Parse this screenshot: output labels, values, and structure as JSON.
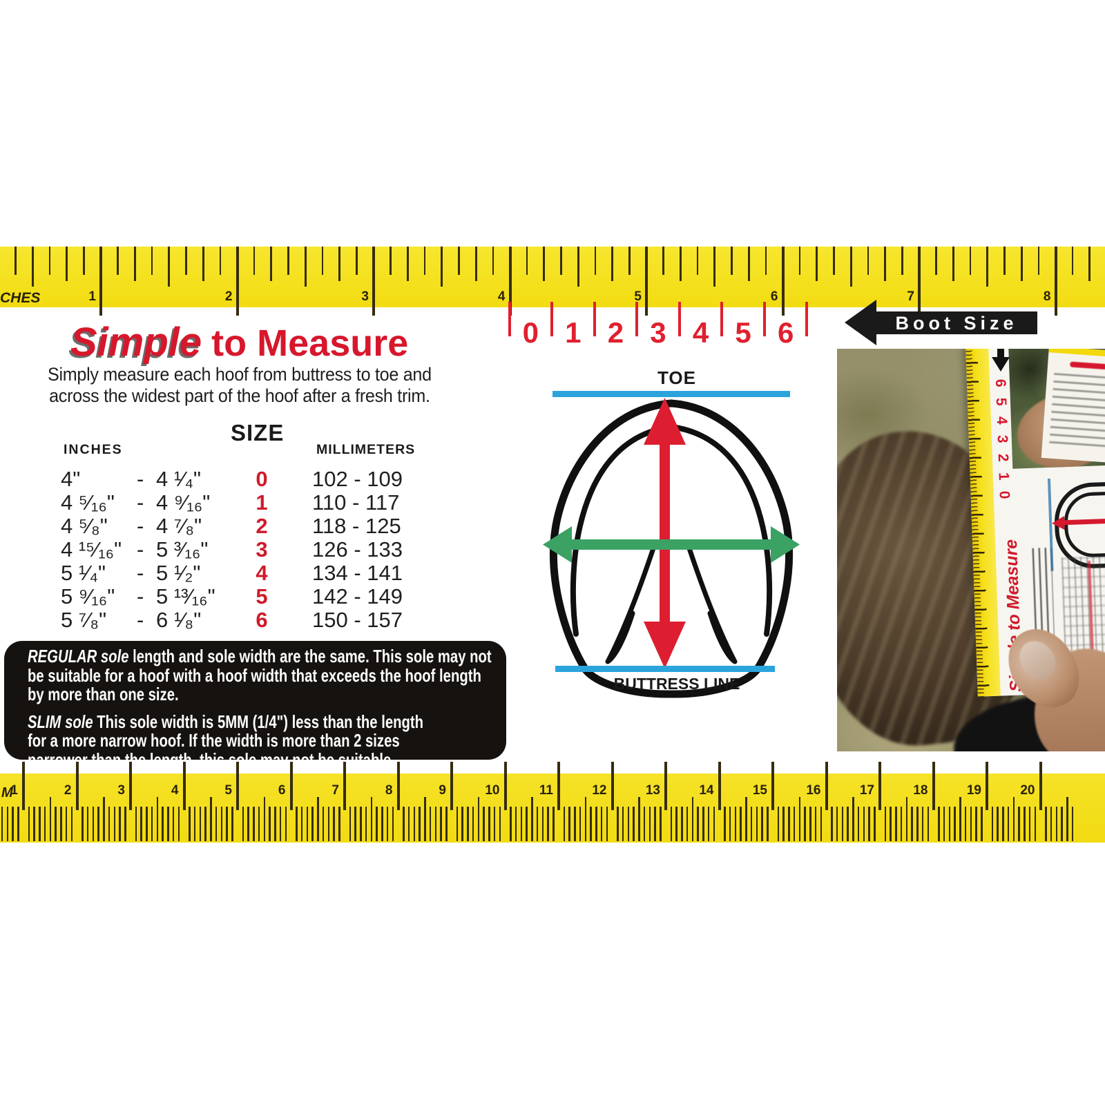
{
  "header": {
    "title_em": "Simple",
    "title_rest": "to Measure",
    "subtitle_line1": "Simply measure each hoof from buttress to toe and",
    "subtitle_line2": "across the widest part of the hoof after a fresh trim."
  },
  "size_table": {
    "inches_header": "INCHES",
    "size_header": "SIZE",
    "mm_header": "MILLIMETERS",
    "rows": [
      {
        "from": "4\"",
        "dash": "-",
        "to": "4 ¹⁄₄\"",
        "size": "0",
        "mm": "102 - 109"
      },
      {
        "from": "4 ⁵⁄₁₆\"",
        "dash": "-",
        "to": "4 ⁹⁄₁₆\"",
        "size": "1",
        "mm": "110 - 117"
      },
      {
        "from": "4 ⁵⁄₈\"",
        "dash": "-",
        "to": "4 ⁷⁄₈\"",
        "size": "2",
        "mm": "118 - 125"
      },
      {
        "from": "4 ¹⁵⁄₁₆\"",
        "dash": "-",
        "to": "5 ³⁄₁₆\"",
        "size": "3",
        "mm": "126 - 133"
      },
      {
        "from": "5 ¹⁄₄\"",
        "dash": "-",
        "to": "5 ¹⁄₂\"",
        "size": "4",
        "mm": "134 - 141"
      },
      {
        "from": "5 ⁹⁄₁₆\"",
        "dash": "-",
        "to": "5 ¹³⁄₁₆\"",
        "size": "5",
        "mm": "142 - 149"
      },
      {
        "from": "5 ⁷⁄₈\"",
        "dash": "-",
        "to": "6 ¹⁄₈\"",
        "size": "6",
        "mm": "150 - 157"
      }
    ]
  },
  "notes": {
    "regular_title": "REGULAR sole",
    "regular_lines": [
      " length and sole width are the same. This sole may not",
      "be suitable for a hoof with a hoof width that exceeds the hoof length",
      "by more than one size."
    ],
    "slim_title": "SLIM sole",
    "slim_lines": [
      " This sole width is 5MM (1/4\") less than the length",
      "for a more narrow hoof. If the width is more than 2 sizes",
      "narrower than the length, this sole may not be suitable."
    ]
  },
  "diagram": {
    "toe_label": "TOE",
    "buttress_label": "BUTTRESS LINE"
  },
  "boot_scale": {
    "sizes": [
      "0",
      "1",
      "2",
      "3",
      "4",
      "5",
      "6"
    ],
    "arrow_label": "Boot Size"
  },
  "top_ruler": {
    "edge_label": "CHES",
    "numbers": [
      "1",
      "2",
      "3",
      "4",
      "5",
      "6",
      "7",
      "8"
    ]
  },
  "bottom_ruler": {
    "edge_label": "M",
    "numbers": [
      "1",
      "2",
      "3",
      "4",
      "5",
      "6",
      "7",
      "8",
      "9",
      "10",
      "11",
      "12",
      "13",
      "14",
      "15",
      "16",
      "17",
      "18",
      "19",
      "20"
    ]
  },
  "photo": {
    "card_sizes": [
      "6",
      "5",
      "4",
      "3",
      "2",
      "1",
      "0"
    ],
    "card_title": "Simple to Measure"
  },
  "colors": {
    "yellow": "#F5E01E",
    "red": "#DC1E30",
    "green": "#3BA264",
    "blue": "#2BA4DC",
    "note_box": "#16120F"
  }
}
